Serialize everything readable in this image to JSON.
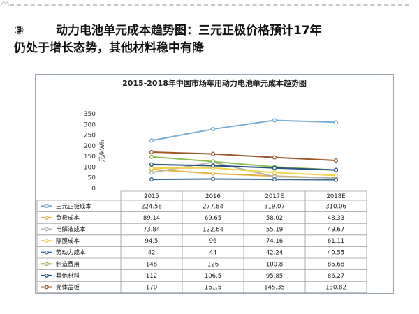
{
  "heading": {
    "number": "③",
    "line1": "动力电池单元成本趋势图：三元正极价格预计17年",
    "line2": "仍处于增长态势，其他材料稳中有降"
  },
  "chart_data": {
    "type": "line",
    "title": "2015-2018年中国市场车用动力电池单元成本趋势图",
    "ylabel": "元/kWh",
    "xlabel": "",
    "categories": [
      "2015",
      "2016",
      "2017E",
      "2018E"
    ],
    "ylim": [
      0,
      350
    ],
    "yticks": [
      0,
      50,
      100,
      150,
      200,
      250,
      300,
      350
    ],
    "grid": false,
    "legend": "table-below",
    "series": [
      {
        "name": "三元正极成本",
        "color": "#7aaed6",
        "values": [
          224.58,
          277.84,
          319.07,
          310.06
        ]
      },
      {
        "name": "负极成本",
        "color": "#e3b341",
        "values": [
          89.14,
          69.65,
          58.02,
          48.33
        ]
      },
      {
        "name": "电解液成本",
        "color": "#b3b3b3",
        "values": [
          73.84,
          122.64,
          55.19,
          49.67
        ]
      },
      {
        "name": "隔膜成本",
        "color": "#f3d34a",
        "values": [
          94.5,
          96,
          74.16,
          61.11
        ]
      },
      {
        "name": "劳动力成本",
        "color": "#3e6b93",
        "values": [
          42,
          44,
          42.24,
          40.55
        ]
      },
      {
        "name": "制造费用",
        "color": "#8fbf5a",
        "values": [
          148,
          126,
          100.8,
          85.68
        ]
      },
      {
        "name": "其他材料",
        "color": "#23527a",
        "values": [
          112,
          106.5,
          95.85,
          86.27
        ]
      },
      {
        "name": "壳体盖板",
        "color": "#9a5a2c",
        "values": [
          170,
          161.5,
          145.35,
          130.82
        ]
      }
    ],
    "table_values": [
      [
        "224.58",
        "277.84",
        "319.07",
        "310.06"
      ],
      [
        "89.14",
        "69.65",
        "58.02",
        "48.33"
      ],
      [
        "73.84",
        "122.64",
        "55.19",
        "49.67"
      ],
      [
        "94.5",
        "96",
        "74.16",
        "61.11"
      ],
      [
        "42",
        "44",
        "42.24",
        "40.55"
      ],
      [
        "148",
        "126",
        "100.8",
        "85.68"
      ],
      [
        "112",
        "106.5",
        "95.85",
        "86.27"
      ],
      [
        "170",
        "161.5",
        "145.35",
        "130.82"
      ]
    ]
  }
}
